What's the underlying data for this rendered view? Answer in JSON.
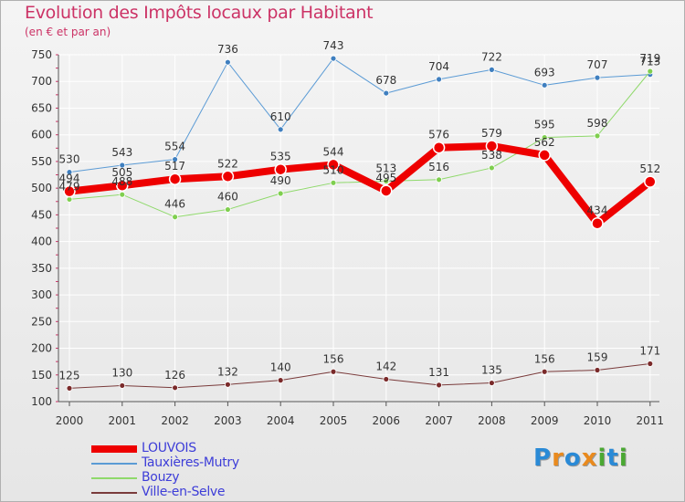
{
  "title": "Evolution des Impôts locaux par Habitant",
  "subtitle": "(en € et par an)",
  "logo": {
    "letters": [
      "P",
      "r",
      "o",
      "x",
      "i",
      "t",
      "i"
    ],
    "colors": [
      "#2a8ad6",
      "#e98a1e",
      "#2a8ad6",
      "#e98a1e",
      "#4aa832",
      "#2a8ad6",
      "#4aa832"
    ]
  },
  "chart_data": {
    "type": "line",
    "title": "Evolution des Impôts locaux par Habitant",
    "subtitle": "(en € et par an)",
    "xlabel": "",
    "ylabel": "",
    "x": [
      "2000",
      "2001",
      "2002",
      "2003",
      "2004",
      "2005",
      "2006",
      "2007",
      "2008",
      "2009",
      "2010",
      "2011"
    ],
    "ylim": [
      100,
      750
    ],
    "yticks": [
      100,
      150,
      200,
      250,
      300,
      350,
      400,
      450,
      500,
      550,
      600,
      650,
      700,
      750
    ],
    "grid": true,
    "legend_position": "bottom-left",
    "series": [
      {
        "name": "LOUVOIS",
        "color": "#ee0000",
        "line_width": 8,
        "marker": "#ee0000",
        "values": [
          494,
          505,
          517,
          522,
          535,
          544,
          495,
          576,
          579,
          562,
          434,
          512
        ]
      },
      {
        "name": "Tauxières-Mutry",
        "color": "#5b9bd5",
        "line_width": 1,
        "marker": "#3f7fbf",
        "values": [
          530,
          543,
          554,
          736,
          610,
          743,
          678,
          704,
          722,
          693,
          707,
          713
        ]
      },
      {
        "name": "Bouzy",
        "color": "#8fd96b",
        "line_width": 1,
        "marker": "#7fcf4f",
        "values": [
          479,
          488,
          446,
          460,
          490,
          510,
          513,
          516,
          538,
          595,
          598,
          719
        ]
      },
      {
        "name": "Ville-en-Selve",
        "color": "#7a3b3b",
        "line_width": 1,
        "marker": "#7a2a2a",
        "values": [
          125,
          130,
          126,
          132,
          140,
          156,
          142,
          131,
          135,
          156,
          159,
          171
        ]
      }
    ]
  }
}
